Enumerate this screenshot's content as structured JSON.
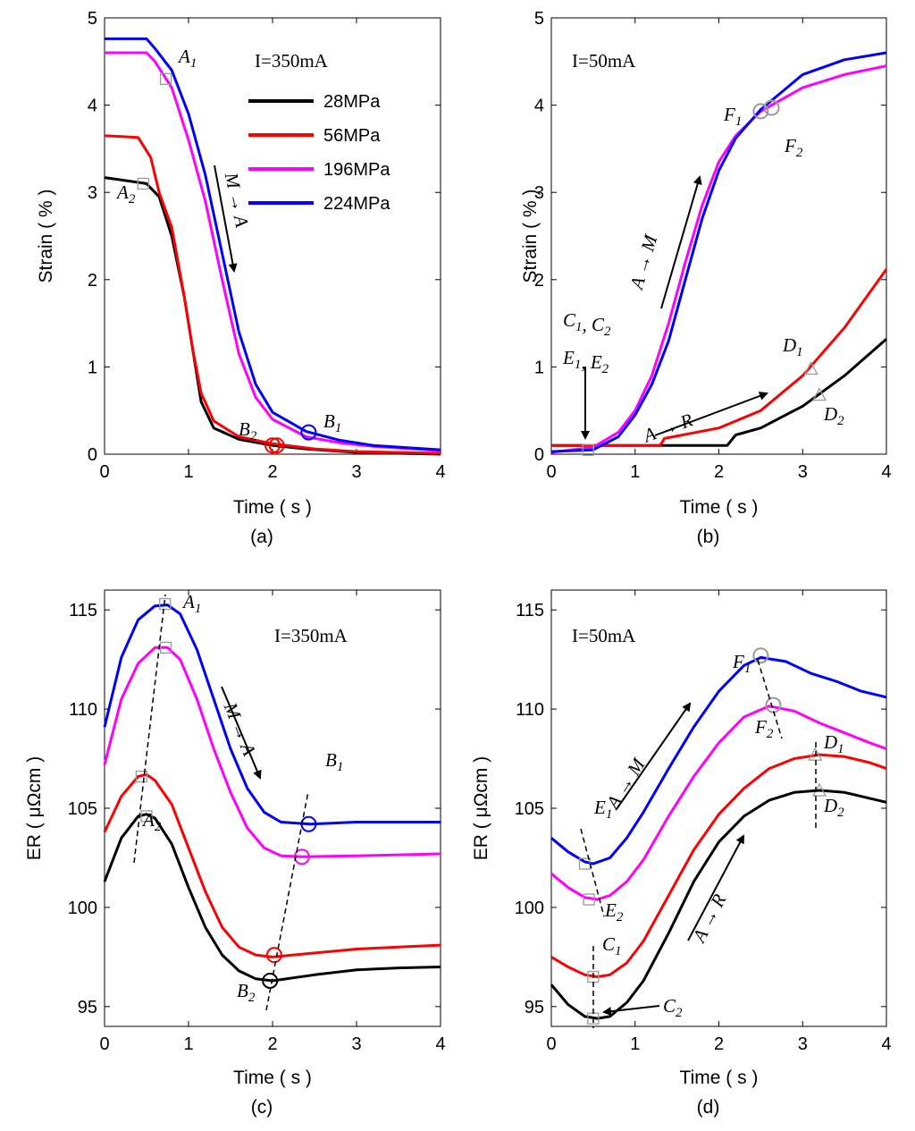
{
  "figure_title": "",
  "chart_data": [
    {
      "type": "line",
      "panel": "(a)",
      "title": "",
      "xlabel": "Time ( s )",
      "ylabel": "Strain ( % )",
      "xlim": [
        0,
        4
      ],
      "ylim": [
        0,
        5
      ],
      "xticks": [
        "0",
        "1",
        "2",
        "3",
        "4"
      ],
      "yticks": [
        "0",
        "1",
        "2",
        "3",
        "4",
        "5"
      ],
      "condition": "I=350mA",
      "legend": {
        "position": "top-right",
        "entries": [
          "28MPa",
          "56MPa",
          "196MPa",
          "224MPa"
        ]
      },
      "series": [
        {
          "name": "28MPa",
          "color": "#000000",
          "x": [
            0,
            0.5,
            0.65,
            0.8,
            0.95,
            1.05,
            1.15,
            1.3,
            1.6,
            2.0,
            2.4,
            3,
            4
          ],
          "y": [
            3.17,
            3.1,
            2.95,
            2.5,
            1.8,
            1.2,
            0.6,
            0.3,
            0.17,
            0.1,
            0.06,
            0.02,
            0.0
          ]
        },
        {
          "name": "56MPa",
          "color": "#ff0000",
          "x": [
            0,
            0.4,
            0.55,
            0.65,
            0.8,
            0.95,
            1.05,
            1.15,
            1.3,
            1.6,
            2.0,
            2.5,
            3,
            4
          ],
          "y": [
            3.65,
            3.63,
            3.4,
            3.0,
            2.6,
            1.8,
            1.2,
            0.7,
            0.38,
            0.2,
            0.12,
            0.06,
            0.03,
            0.01
          ]
        },
        {
          "name": "196MPa",
          "color": "#ff00ff",
          "x": [
            0,
            0.5,
            0.6,
            0.8,
            1.0,
            1.2,
            1.4,
            1.6,
            1.8,
            2.0,
            2.4,
            2.8,
            3.2,
            4
          ],
          "y": [
            4.6,
            4.6,
            4.5,
            4.2,
            3.6,
            2.9,
            2.0,
            1.15,
            0.65,
            0.4,
            0.2,
            0.13,
            0.09,
            0.04
          ]
        },
        {
          "name": "224MPa",
          "color": "#0000ff",
          "x": [
            0,
            0.5,
            0.6,
            0.8,
            1.0,
            1.2,
            1.4,
            1.6,
            1.8,
            2.0,
            2.4,
            2.8,
            3.2,
            4
          ],
          "y": [
            4.76,
            4.76,
            4.65,
            4.4,
            3.9,
            3.2,
            2.3,
            1.4,
            0.8,
            0.48,
            0.26,
            0.16,
            0.1,
            0.05
          ]
        }
      ],
      "markers": [
        {
          "label": "A1",
          "x": 0.73,
          "y": 4.3
        },
        {
          "label": "A2",
          "x": 0.46,
          "y": 3.1
        },
        {
          "label": "B1",
          "x": 2.43,
          "y": 0.25
        },
        {
          "label": "B2",
          "x": 2.0,
          "y": 0.1
        }
      ],
      "arrows": [
        {
          "label": "M→A"
        }
      ]
    },
    {
      "type": "line",
      "panel": "(b)",
      "title": "",
      "xlabel": "Time ( s )",
      "ylabel": "Strain ( % )",
      "xlim": [
        0,
        4
      ],
      "ylim": [
        0,
        5
      ],
      "xticks": [
        "0",
        "1",
        "2",
        "3",
        "4"
      ],
      "yticks": [
        "0",
        "1",
        "2",
        "3",
        "4",
        "5"
      ],
      "condition": "I=50mA",
      "series": [
        {
          "name": "28MPa",
          "color": "#000000",
          "x": [
            0,
            0.5,
            1.0,
            1.5,
            2.1,
            2.2,
            2.5,
            3.0,
            3.5,
            4.0
          ],
          "y": [
            0.1,
            0.1,
            0.1,
            0.1,
            0.1,
            0.22,
            0.3,
            0.55,
            0.9,
            1.32
          ]
        },
        {
          "name": "56MPa",
          "color": "#ff0000",
          "x": [
            0,
            0.5,
            1.0,
            1.3,
            1.35,
            2.0,
            2.5,
            3.0,
            3.5,
            4.0
          ],
          "y": [
            0.1,
            0.1,
            0.1,
            0.1,
            0.18,
            0.3,
            0.5,
            0.9,
            1.45,
            2.12
          ]
        },
        {
          "name": "196MPa",
          "color": "#ff00ff",
          "x": [
            0,
            0.5,
            0.8,
            1.0,
            1.2,
            1.4,
            1.6,
            1.8,
            2.0,
            2.2,
            2.5,
            3.0,
            3.5,
            4.0
          ],
          "y": [
            0.02,
            0.08,
            0.25,
            0.5,
            0.9,
            1.5,
            2.2,
            2.85,
            3.35,
            3.65,
            3.93,
            4.2,
            4.35,
            4.45
          ]
        },
        {
          "name": "224MPa",
          "color": "#0000ff",
          "x": [
            0,
            0.5,
            0.8,
            1.0,
            1.2,
            1.4,
            1.6,
            1.8,
            2.0,
            2.2,
            2.5,
            3.0,
            3.5,
            4.0
          ],
          "y": [
            0.03,
            0.05,
            0.2,
            0.45,
            0.8,
            1.3,
            2.0,
            2.7,
            3.25,
            3.62,
            3.95,
            4.35,
            4.52,
            4.6
          ]
        }
      ],
      "markers": [
        {
          "label": "F1",
          "x": 2.5,
          "y": 3.93
        },
        {
          "label": "F2",
          "x": 2.63,
          "y": 3.97
        },
        {
          "label": "D1",
          "x": 3.1,
          "y": 0.98
        },
        {
          "label": "D2",
          "x": 3.2,
          "y": 0.68
        },
        {
          "label": "C1, C2",
          "x": 0.44,
          "y": 0.05
        },
        {
          "label": "E1, E2",
          "x": 0.44,
          "y": 0.05
        }
      ],
      "arrows": [
        {
          "label": "A→M"
        },
        {
          "label": "A→R"
        }
      ]
    },
    {
      "type": "line",
      "panel": "(c)",
      "title": "",
      "xlabel": "Time ( s )",
      "ylabel": "ER ( μΩcm )",
      "xlim": [
        0,
        4
      ],
      "ylim": [
        94,
        116
      ],
      "xticks": [
        "0",
        "1",
        "2",
        "3",
        "4"
      ],
      "yticks": [
        "95",
        "100",
        "105",
        "110",
        "115"
      ],
      "condition": "I=350mA",
      "series": [
        {
          "name": "28MPa",
          "color": "#000000",
          "x": [
            0,
            0.2,
            0.4,
            0.5,
            0.6,
            0.8,
            1.0,
            1.2,
            1.4,
            1.6,
            1.8,
            2.0,
            2.5,
            3.0,
            3.5,
            4.0
          ],
          "y": [
            101.3,
            103.5,
            104.6,
            104.7,
            104.5,
            103.2,
            101.0,
            99.0,
            97.6,
            96.8,
            96.4,
            96.3,
            96.6,
            96.85,
            96.95,
            97.0
          ]
        },
        {
          "name": "56MPa",
          "color": "#ff0000",
          "x": [
            0,
            0.2,
            0.4,
            0.5,
            0.6,
            0.8,
            1.0,
            1.2,
            1.4,
            1.6,
            1.8,
            2.0,
            2.5,
            3.0,
            3.5,
            4.0
          ],
          "y": [
            103.8,
            105.6,
            106.6,
            106.7,
            106.4,
            105.2,
            103.0,
            100.8,
            99.0,
            98.0,
            97.6,
            97.5,
            97.7,
            97.9,
            98.0,
            98.1
          ]
        },
        {
          "name": "196MPa",
          "color": "#ff00ff",
          "x": [
            0,
            0.2,
            0.4,
            0.6,
            0.75,
            0.9,
            1.1,
            1.3,
            1.5,
            1.7,
            1.9,
            2.1,
            2.35,
            3.0,
            3.5,
            4.0
          ],
          "y": [
            107.2,
            110.5,
            112.3,
            113.1,
            113.1,
            112.5,
            110.5,
            108.0,
            105.8,
            104.0,
            103.0,
            102.6,
            102.55,
            102.6,
            102.65,
            102.7
          ]
        },
        {
          "name": "224MPa",
          "color": "#0000ff",
          "x": [
            0,
            0.2,
            0.4,
            0.6,
            0.75,
            0.9,
            1.1,
            1.3,
            1.5,
            1.7,
            1.9,
            2.1,
            2.45,
            3.0,
            3.5,
            4.0
          ],
          "y": [
            109.1,
            112.6,
            114.5,
            115.2,
            115.25,
            114.8,
            113.0,
            110.5,
            108.0,
            106.0,
            104.8,
            104.3,
            104.2,
            104.3,
            104.3,
            104.3
          ]
        }
      ],
      "markers": [
        {
          "label": "A1",
          "x": 0.72,
          "y": 115.3
        },
        {
          "label": "A2",
          "x": 0.5,
          "y": 104.6
        },
        {
          "label": "B1",
          "x": 2.43,
          "y": 104.2
        },
        {
          "label": "B2",
          "x": 1.97,
          "y": 96.3
        }
      ],
      "arrows": [
        {
          "label": "M→A"
        }
      ]
    },
    {
      "type": "line",
      "panel": "(d)",
      "title": "",
      "xlabel": "Time ( s )",
      "ylabel": "ER ( μΩcm )",
      "xlim": [
        0,
        4
      ],
      "ylim": [
        94,
        116
      ],
      "xticks": [
        "0",
        "1",
        "2",
        "3",
        "4"
      ],
      "yticks": [
        "95",
        "100",
        "105",
        "110",
        "115"
      ],
      "condition": "I=50mA",
      "series": [
        {
          "name": "28MPa",
          "color": "#000000",
          "x": [
            0,
            0.2,
            0.4,
            0.55,
            0.7,
            0.9,
            1.1,
            1.4,
            1.7,
            2.0,
            2.3,
            2.6,
            2.9,
            3.2,
            3.5,
            3.8,
            4.0
          ],
          "y": [
            96.1,
            95.1,
            94.5,
            94.4,
            94.5,
            95.2,
            96.3,
            98.7,
            101.3,
            103.3,
            104.6,
            105.4,
            105.8,
            105.9,
            105.8,
            105.5,
            105.3
          ]
        },
        {
          "name": "56MPa",
          "color": "#ff0000",
          "x": [
            0,
            0.2,
            0.4,
            0.55,
            0.7,
            0.9,
            1.1,
            1.4,
            1.7,
            2.0,
            2.3,
            2.6,
            2.9,
            3.2,
            3.5,
            3.8,
            4.0
          ],
          "y": [
            97.5,
            97.0,
            96.6,
            96.5,
            96.6,
            97.2,
            98.3,
            100.6,
            102.9,
            104.7,
            106.0,
            107.0,
            107.5,
            107.7,
            107.6,
            107.3,
            107.0
          ]
        },
        {
          "name": "196MPa",
          "color": "#ff00ff",
          "x": [
            0,
            0.2,
            0.4,
            0.55,
            0.7,
            0.9,
            1.1,
            1.4,
            1.7,
            2.0,
            2.3,
            2.6,
            2.9,
            3.2,
            3.5,
            3.8,
            4.0
          ],
          "y": [
            101.7,
            101.0,
            100.5,
            100.4,
            100.6,
            101.3,
            102.4,
            104.6,
            106.6,
            108.3,
            109.6,
            110.15,
            109.9,
            109.3,
            108.8,
            108.3,
            108.0
          ]
        },
        {
          "name": "224MPa",
          "color": "#0000ff",
          "x": [
            0,
            0.2,
            0.4,
            0.5,
            0.7,
            0.9,
            1.1,
            1.4,
            1.7,
            2.0,
            2.3,
            2.5,
            2.8,
            3.1,
            3.4,
            3.7,
            4.0
          ],
          "y": [
            103.5,
            102.8,
            102.3,
            102.2,
            102.5,
            103.5,
            104.8,
            107.0,
            109.1,
            110.9,
            112.2,
            112.6,
            112.4,
            111.8,
            111.4,
            110.9,
            110.6
          ]
        }
      ],
      "markers": [
        {
          "label": "E1",
          "x": 0.4,
          "y": 102.2
        },
        {
          "label": "E2",
          "x": 0.45,
          "y": 100.4
        },
        {
          "label": "C1",
          "x": 0.5,
          "y": 96.5
        },
        {
          "label": "C2",
          "x": 0.5,
          "y": 94.4
        },
        {
          "label": "F1",
          "x": 2.5,
          "y": 112.7
        },
        {
          "label": "F2",
          "x": 2.65,
          "y": 110.2
        },
        {
          "label": "D1",
          "x": 3.15,
          "y": 107.7
        },
        {
          "label": "D2",
          "x": 3.2,
          "y": 105.9
        }
      ],
      "arrows": [
        {
          "label": "A→M"
        },
        {
          "label": "A→R"
        }
      ]
    }
  ]
}
